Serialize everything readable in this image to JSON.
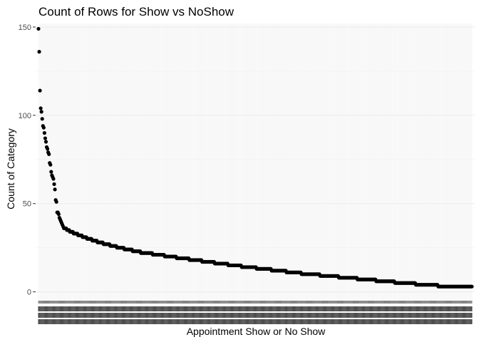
{
  "chart_data": {
    "type": "scatter",
    "title": "Count of Rows for Show vs NoShow",
    "xlabel": "Appointment Show or No Show",
    "ylabel": "Count of Category",
    "ylim": [
      -5,
      152
    ],
    "yticks": [
      0,
      50,
      100,
      150
    ],
    "grid": true,
    "legend": "none",
    "point_color": "#000000",
    "grid_color": "#ebebeb",
    "category_count": 540,
    "y_sorted_desc": [
      149,
      136,
      114,
      104,
      102,
      98,
      94,
      93,
      90,
      87,
      85,
      82,
      81,
      79,
      78,
      73,
      72,
      68,
      66,
      65,
      64,
      61,
      58,
      52,
      51,
      45,
      45,
      44,
      42,
      41,
      40,
      39,
      38,
      37,
      36,
      35,
      34,
      33,
      32,
      31,
      30,
      29,
      28,
      27,
      26,
      25,
      24,
      23,
      22,
      21,
      20,
      19,
      18,
      17,
      16,
      15,
      14,
      13,
      12,
      11,
      10,
      9,
      8,
      7,
      6,
      5,
      4,
      3
    ],
    "y_runs": [
      {
        "y": 36,
        "count": 4
      },
      {
        "y": 35,
        "count": 4
      },
      {
        "y": 34,
        "count": 5
      },
      {
        "y": 33,
        "count": 6
      },
      {
        "y": 32,
        "count": 6
      },
      {
        "y": 31,
        "count": 6
      },
      {
        "y": 30,
        "count": 7
      },
      {
        "y": 29,
        "count": 7
      },
      {
        "y": 28,
        "count": 8
      },
      {
        "y": 27,
        "count": 9
      },
      {
        "y": 26,
        "count": 9
      },
      {
        "y": 25,
        "count": 10
      },
      {
        "y": 24,
        "count": 11
      },
      {
        "y": 23,
        "count": 11
      },
      {
        "y": 22,
        "count": 16
      },
      {
        "y": 21,
        "count": 16
      },
      {
        "y": 20,
        "count": 16
      },
      {
        "y": 19,
        "count": 17
      },
      {
        "y": 18,
        "count": 17
      },
      {
        "y": 17,
        "count": 17
      },
      {
        "y": 16,
        "count": 18
      },
      {
        "y": 15,
        "count": 18
      },
      {
        "y": 14,
        "count": 20
      },
      {
        "y": 13,
        "count": 20
      },
      {
        "y": 12,
        "count": 20
      },
      {
        "y": 11,
        "count": 20
      },
      {
        "y": 10,
        "count": 25
      },
      {
        "y": 9,
        "count": 25
      },
      {
        "y": 8,
        "count": 25
      },
      {
        "y": 7,
        "count": 25
      },
      {
        "y": 6,
        "count": 25
      },
      {
        "y": 5,
        "count": 28
      },
      {
        "y": 4,
        "count": 30
      },
      {
        "y": 3,
        "count": 46
      }
    ]
  }
}
